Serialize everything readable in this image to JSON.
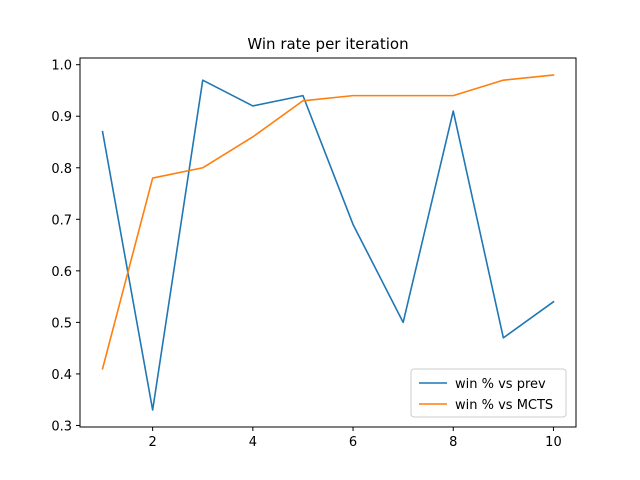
{
  "chart_data": {
    "type": "line",
    "title": "Win rate per iteration",
    "xlabel": "",
    "ylabel": "",
    "x": [
      1,
      2,
      3,
      4,
      5,
      6,
      7,
      8,
      9,
      10
    ],
    "xlim": [
      0.55,
      10.45
    ],
    "ylim": [
      0.297,
      1.013
    ],
    "xticks": [
      2,
      4,
      6,
      8,
      10
    ],
    "xtick_labels": [
      "2",
      "4",
      "6",
      "8",
      "10"
    ],
    "yticks": [
      0.3,
      0.4,
      0.5,
      0.6,
      0.7,
      0.8,
      0.9,
      1.0
    ],
    "ytick_labels": [
      "0.3",
      "0.4",
      "0.5",
      "0.6",
      "0.7",
      "0.8",
      "0.9",
      "1.0"
    ],
    "grid": false,
    "legend_position": "lower-right",
    "series": [
      {
        "name": "win % vs prev",
        "color": "#1f77b4",
        "values": [
          0.87,
          0.33,
          0.97,
          0.92,
          0.94,
          0.69,
          0.5,
          0.91,
          0.47,
          0.54
        ]
      },
      {
        "name": "win % vs MCTS",
        "color": "#ff7f0e",
        "values": [
          0.41,
          0.78,
          0.8,
          0.86,
          0.93,
          0.94,
          0.94,
          0.94,
          0.97,
          0.98
        ]
      }
    ]
  }
}
